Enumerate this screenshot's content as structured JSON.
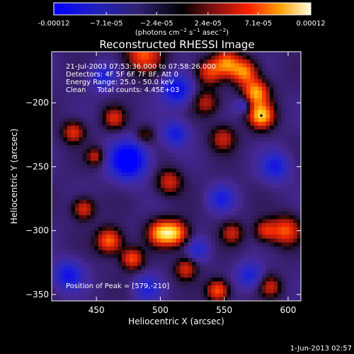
{
  "chart_data": {
    "type": "heatmap",
    "title": "Reconstructed RHESSI Image",
    "xlabel": "Heliocentric X (arcsec)",
    "ylabel": "Heliocentric Y (arcsec)",
    "xlim": [
      415,
      610
    ],
    "ylim": [
      -355,
      -160
    ],
    "x_ticks": [
      450,
      500,
      550,
      600
    ],
    "y_ticks": [
      -350,
      -300,
      -250,
      -200
    ],
    "colorbar": {
      "ticks": [
        "-0.00012",
        "−7.1e-05",
        "−2.4e-05",
        "2.4e-05",
        "7.1e-05",
        "0.00012"
      ],
      "tick_values": [
        -0.00012,
        -7.1e-05,
        -2.4e-05,
        2.4e-05,
        7.1e-05,
        0.00012
      ],
      "range": [
        -0.00012,
        0.00012
      ],
      "label_main": "(photons cm",
      "label_exp1": "−2",
      "label_mid": " s",
      "label_exp2": "−1",
      "label_end": " asec",
      "label_exp3": "−2",
      "label_close": ")"
    },
    "annotations": [
      "21-Jul-2003 07:53:36.000 to 07:58:26.000",
      "Detectors: 4F 5F 6F 7F 8F, Att 0",
      "Energy Range: 25.0 - 50.0 keV",
      "Clean     Total counts: 4.45E+03"
    ],
    "peak_text": "Position of Peak = [579,-210]",
    "peak": [
      579,
      -210
    ],
    "sources": [
      {
        "x": 579,
        "y": -210,
        "amp": 1.0,
        "w": 7
      },
      {
        "x": 575,
        "y": -192,
        "amp": 0.9,
        "w": 7
      },
      {
        "x": 566,
        "y": -176,
        "amp": 0.8,
        "w": 7
      },
      {
        "x": 552,
        "y": -169,
        "amp": 0.75,
        "w": 7
      },
      {
        "x": 538,
        "y": -176,
        "amp": 0.6,
        "w": 7
      },
      {
        "x": 536,
        "y": -200,
        "amp": 0.45,
        "w": 7
      },
      {
        "x": 549,
        "y": -228,
        "amp": 0.5,
        "w": 7
      },
      {
        "x": 598,
        "y": -300,
        "amp": 0.7,
        "w": 8
      },
      {
        "x": 582,
        "y": -300,
        "amp": 0.55,
        "w": 6
      },
      {
        "x": 487,
        "y": -162,
        "amp": 0.7,
        "w": 10
      },
      {
        "x": 464,
        "y": -212,
        "amp": 0.55,
        "w": 6
      },
      {
        "x": 432,
        "y": -223,
        "amp": 0.6,
        "w": 6
      },
      {
        "x": 449,
        "y": -242,
        "amp": 0.5,
        "w": 5
      },
      {
        "x": 488,
        "y": -225,
        "amp": 0.35,
        "w": 5
      },
      {
        "x": 507,
        "y": -262,
        "amp": 0.55,
        "w": 7
      },
      {
        "x": 500,
        "y": -302,
        "amp": 0.85,
        "w": 7
      },
      {
        "x": 512,
        "y": -302,
        "amp": 0.85,
        "w": 7
      },
      {
        "x": 460,
        "y": -308,
        "amp": 0.8,
        "w": 7
      },
      {
        "x": 478,
        "y": -322,
        "amp": 0.7,
        "w": 6
      },
      {
        "x": 440,
        "y": -283,
        "amp": 0.6,
        "w": 6
      },
      {
        "x": 556,
        "y": -302,
        "amp": 0.5,
        "w": 6
      },
      {
        "x": 545,
        "y": -347,
        "amp": 0.75,
        "w": 6
      },
      {
        "x": 520,
        "y": -330,
        "amp": 0.55,
        "w": 6
      },
      {
        "x": 586,
        "y": -344,
        "amp": 0.5,
        "w": 6
      },
      {
        "x": 475,
        "y": -245,
        "amp": -1.0,
        "w": 10
      },
      {
        "x": 513,
        "y": -190,
        "amp": -0.7,
        "w": 8
      },
      {
        "x": 512,
        "y": -224,
        "amp": -0.55,
        "w": 7
      },
      {
        "x": 428,
        "y": -335,
        "amp": -0.6,
        "w": 8
      },
      {
        "x": 590,
        "y": -250,
        "amp": -0.55,
        "w": 8
      },
      {
        "x": 548,
        "y": -275,
        "amp": -0.5,
        "w": 7
      },
      {
        "x": 570,
        "y": -335,
        "amp": -0.5,
        "w": 7
      },
      {
        "x": 455,
        "y": -180,
        "amp": -0.45,
        "w": 7
      },
      {
        "x": 530,
        "y": -315,
        "amp": -0.4,
        "w": 6
      },
      {
        "x": 490,
        "y": -345,
        "amp": -0.45,
        "w": 7
      },
      {
        "x": 565,
        "y": -202,
        "amp": -0.45,
        "w": 4
      }
    ]
  },
  "footer": {
    "timestamp": "1-Jun-2013 02:57"
  }
}
